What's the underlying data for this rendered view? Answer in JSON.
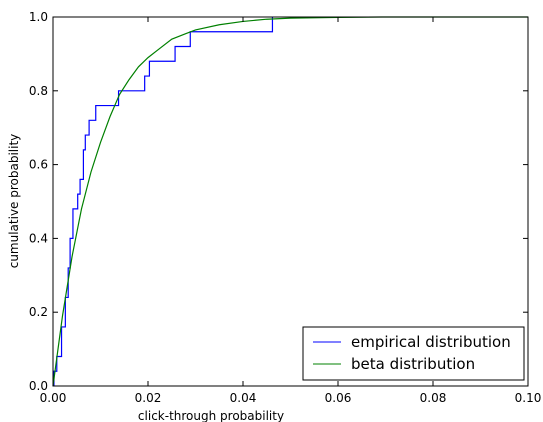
{
  "chart_data": {
    "type": "line",
    "xlabel": "click-through probability",
    "ylabel": "cumulative probability",
    "xlim": [
      0,
      0.1
    ],
    "ylim": [
      0,
      1
    ],
    "x_ticks": [
      "0.00",
      "0.02",
      "0.04",
      "0.06",
      "0.08",
      "0.10"
    ],
    "y_ticks": [
      "0.0",
      "0.2",
      "0.4",
      "0.6",
      "0.8",
      "1.0"
    ],
    "grid": false,
    "legend_position": "bottom-right",
    "series": [
      {
        "name": "empirical distribution",
        "kind": "step",
        "color": "#0000ff",
        "x": [
          0.0002,
          0.0008,
          0.0018,
          0.0026,
          0.0032,
          0.0036,
          0.0042,
          0.0052,
          0.0057,
          0.0064,
          0.0068,
          0.0076,
          0.009,
          0.0138,
          0.0193,
          0.0203,
          0.0257,
          0.0289,
          0.0462
        ],
        "y": [
          0.04,
          0.08,
          0.16,
          0.24,
          0.32,
          0.4,
          0.48,
          0.52,
          0.56,
          0.64,
          0.68,
          0.72,
          0.76,
          0.8,
          0.84,
          0.88,
          0.92,
          0.96,
          1.0
        ]
      },
      {
        "name": "beta distribution",
        "kind": "line",
        "color": "#008000",
        "x": [
          0,
          0.002,
          0.004,
          0.006,
          0.008,
          0.01,
          0.012,
          0.014,
          0.016,
          0.018,
          0.02,
          0.022,
          0.025,
          0.028,
          0.03,
          0.035,
          0.04,
          0.045,
          0.05,
          0.06,
          0.07,
          0.08,
          0.1
        ],
        "y": [
          0,
          0.19,
          0.35,
          0.48,
          0.58,
          0.66,
          0.73,
          0.79,
          0.83,
          0.865,
          0.89,
          0.91,
          0.94,
          0.955,
          0.965,
          0.979,
          0.988,
          0.994,
          0.997,
          0.999,
          1.0,
          1.0,
          1.0
        ]
      }
    ]
  }
}
